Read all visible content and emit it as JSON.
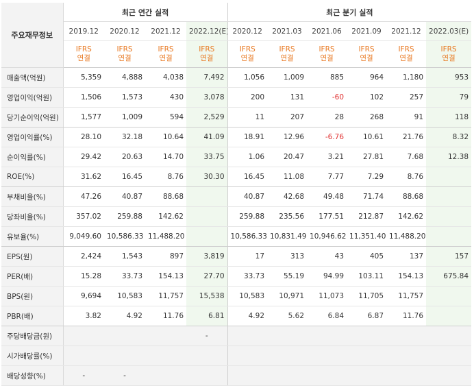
{
  "header": {
    "corner_label": "주요재무정보",
    "annual_title": "최근 연간 실적",
    "quarter_title": "최근 분기 실적",
    "periods": [
      "2019.12",
      "2020.12",
      "2021.12",
      "2022.12(E)",
      "2020.12",
      "2021.03",
      "2021.06",
      "2021.09",
      "2021.12",
      "2022.03(E)"
    ],
    "ifrs_line1": "IFRS",
    "ifrs_line2": "연결"
  },
  "rows": [
    {
      "label": "매출액(억원)",
      "values": [
        "5,359",
        "4,888",
        "4,038",
        "7,492",
        "1,056",
        "1,009",
        "885",
        "964",
        "1,180",
        "953"
      ]
    },
    {
      "label": "영업이익(억원)",
      "values": [
        "1,506",
        "1,573",
        "430",
        "3,078",
        "200",
        "131",
        "-60",
        "102",
        "257",
        "79"
      ]
    },
    {
      "label": "당기순이익(억원)",
      "values": [
        "1,577",
        "1,009",
        "594",
        "2,529",
        "11",
        "207",
        "28",
        "268",
        "91",
        "118"
      ]
    },
    {
      "label": "영업이익률(%)",
      "values": [
        "28.10",
        "32.18",
        "10.64",
        "41.09",
        "18.91",
        "12.96",
        "-6.76",
        "10.61",
        "21.76",
        "8.32"
      ]
    },
    {
      "label": "순이익률(%)",
      "values": [
        "29.42",
        "20.63",
        "14.70",
        "33.75",
        "1.06",
        "20.47",
        "3.21",
        "27.81",
        "7.68",
        "12.38"
      ]
    },
    {
      "label": "ROE(%)",
      "values": [
        "31.62",
        "16.45",
        "8.76",
        "30.30",
        "16.45",
        "11.08",
        "7.77",
        "7.29",
        "8.76",
        ""
      ]
    },
    {
      "label": "부채비율(%)",
      "values": [
        "47.26",
        "40.87",
        "88.68",
        "",
        "40.87",
        "42.68",
        "49.48",
        "71.74",
        "88.68",
        ""
      ]
    },
    {
      "label": "당좌비율(%)",
      "values": [
        "357.02",
        "259.88",
        "142.62",
        "",
        "259.88",
        "235.56",
        "177.51",
        "212.87",
        "142.62",
        ""
      ]
    },
    {
      "label": "유보율(%)",
      "values": [
        "9,049.60",
        "10,586.33",
        "11,488.20",
        "",
        "10,586.33",
        "10,831.49",
        "10,946.62",
        "11,351.40",
        "11,488.20",
        ""
      ]
    },
    {
      "label": "EPS(원)",
      "values": [
        "2,424",
        "1,543",
        "897",
        "3,819",
        "17",
        "313",
        "43",
        "405",
        "137",
        "157"
      ]
    },
    {
      "label": "PER(배)",
      "values": [
        "15.28",
        "33.73",
        "154.13",
        "27.70",
        "33.73",
        "55.19",
        "94.99",
        "103.11",
        "154.13",
        "675.84"
      ]
    },
    {
      "label": "BPS(원)",
      "values": [
        "9,694",
        "10,583",
        "11,757",
        "15,538",
        "10,583",
        "10,971",
        "11,073",
        "11,705",
        "11,757",
        ""
      ]
    },
    {
      "label": "PBR(배)",
      "values": [
        "3.82",
        "4.92",
        "11.76",
        "6.81",
        "4.92",
        "5.62",
        "6.84",
        "6.87",
        "11.76",
        ""
      ]
    },
    {
      "label": "주당배당금(원)",
      "values": [
        "",
        "",
        "",
        "-",
        "",
        "",
        "",
        "",
        "",
        ""
      ]
    },
    {
      "label": "시가배당률(%)",
      "values": [
        "",
        "",
        "",
        "",
        "",
        "",
        "",
        "",
        "",
        ""
      ]
    },
    {
      "label": "배당성향(%)",
      "values": [
        "-",
        "-",
        "",
        "",
        "",
        "",
        "",
        "",
        "",
        ""
      ]
    }
  ]
}
